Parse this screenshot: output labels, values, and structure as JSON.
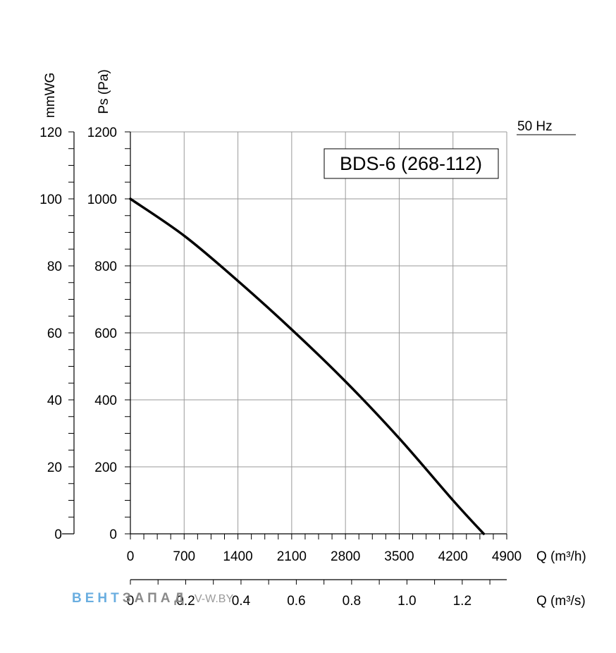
{
  "chart_data": {
    "type": "line",
    "title": "BDS-6 (268-112)",
    "frequency_label": "50 Hz",
    "y_left_label": "mmWG",
    "y_label": "Ps (Pa)",
    "x_label": "Q (m³/h)",
    "x2_label": "Q (m³/s)",
    "xlim": [
      0,
      4900
    ],
    "ylim": [
      0,
      1200
    ],
    "y_left_lim": [
      0,
      120
    ],
    "x2_lim": [
      0,
      1.361
    ],
    "x_ticks": [
      "0",
      "700",
      "1400",
      "2100",
      "2800",
      "3500",
      "4200",
      "4900"
    ],
    "y_ticks": [
      "0",
      "200",
      "400",
      "600",
      "800",
      "1000",
      "1200"
    ],
    "y_left_ticks": [
      "0",
      "20",
      "40",
      "60",
      "80",
      "100",
      "120"
    ],
    "x2_ticks": [
      "0",
      "0.2",
      "0.4",
      "0.6",
      "0.8",
      "1.0",
      "1.2"
    ],
    "grid": true,
    "series": [
      {
        "values": [
          {
            "x": 0,
            "y": 1000
          },
          {
            "x": 700,
            "y": 890
          },
          {
            "x": 1400,
            "y": 755
          },
          {
            "x": 2100,
            "y": 610
          },
          {
            "x": 2800,
            "y": 455
          },
          {
            "x": 3500,
            "y": 285
          },
          {
            "x": 4200,
            "y": 100
          },
          {
            "x": 4600,
            "y": 0
          }
        ]
      }
    ]
  },
  "watermark": {
    "part1": "ВЕНТ",
    "part2": "ЗАПАД",
    "part3": "V-W.BY"
  }
}
